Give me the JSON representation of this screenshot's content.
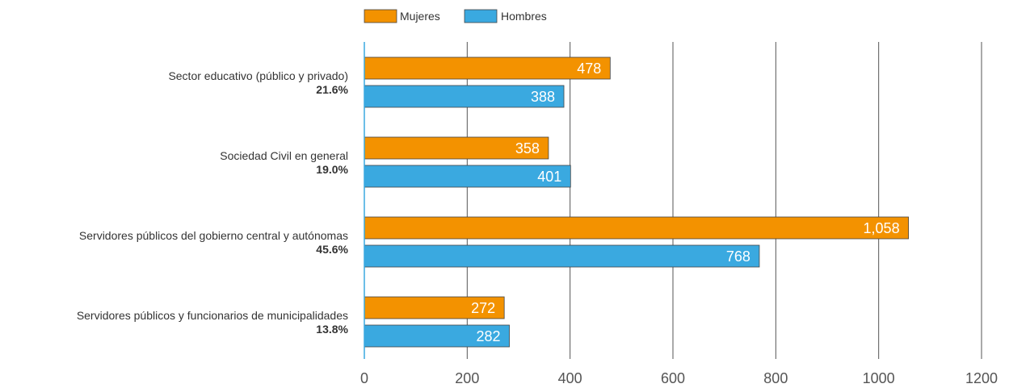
{
  "chart_data": {
    "type": "bar",
    "orientation": "horizontal",
    "categories": [
      "Sector educativo (público y privado)",
      "Sociedad Civil en general",
      "Servidores públicos del gobierno central y autónomas",
      "Servidores públicos y funcionarios de municipalidades"
    ],
    "category_percent": [
      "21.6%",
      "19.0%",
      "45.6%",
      "13.8%"
    ],
    "series": [
      {
        "name": "Mujeres",
        "color": "#F39200",
        "values": [
          478,
          358,
          1058,
          272
        ],
        "labels": [
          "478",
          "358",
          "1,058",
          "272"
        ]
      },
      {
        "name": "Hombres",
        "color": "#3AA9E0",
        "values": [
          388,
          401,
          768,
          282
        ],
        "labels": [
          "388",
          "401",
          "768",
          "282"
        ]
      }
    ],
    "xlim": [
      0,
      1200
    ],
    "x_ticks": [
      0,
      200,
      400,
      600,
      800,
      1000,
      1200
    ],
    "x_tick_labels": [
      "0",
      "200",
      "400",
      "600",
      "800",
      "1000",
      "1200"
    ],
    "grid": true,
    "legend_position": "top-center",
    "title": "",
    "xlabel": "",
    "ylabel": "",
    "gridline_color": "#555555",
    "axis_color": "#3AA9E0"
  }
}
